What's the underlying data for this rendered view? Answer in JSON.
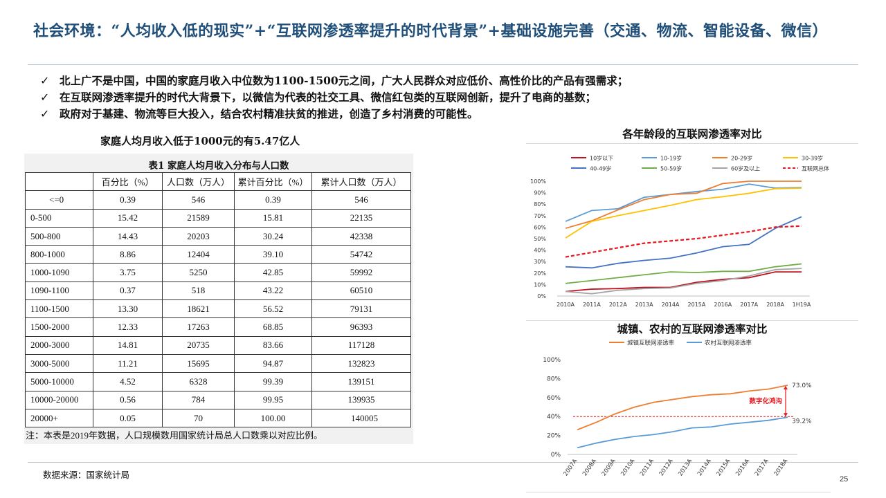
{
  "title": "社会环境：“人均收入低的现实”+“互联网渗透率提升的时代背景”+基础设施完善（交通、物流、智能设备、微信）",
  "bullets": [
    "北上广不是中国，中国的家庭月收入中位数为1100-1500元之间，广大人民群众对应低价、高性价比的产品有强需求；",
    "在互联网渗透率提升的时代大背景下，以微信为代表的社交工具、微信红包类的互联网创新，提升了电商的基数；",
    "政府对于基建、物流等巨大投入，结合农村精准扶贫的推进，创造了乡村消费的可能性。"
  ],
  "bullet_icon": "check-icon",
  "left_caption": "家庭人均月收入低于1000元的有5.47亿人",
  "table": {
    "caption": "表1 家庭人均月收入分布与人口数",
    "headers": [
      "",
      "百分比（%）",
      "人口数（万人）",
      "累计百分比（%）",
      "累计人口数（万人）"
    ],
    "rows": [
      [
        "<=0",
        "0.39",
        "546",
        "0.39",
        "546"
      ],
      [
        "0-500",
        "15.42",
        "21589",
        "15.81",
        "22135"
      ],
      [
        "500-800",
        "14.43",
        "20203",
        "30.24",
        "42338"
      ],
      [
        "800-1000",
        "8.86",
        "12404",
        "39.10",
        "54742"
      ],
      [
        "1000-1090",
        "3.75",
        "5250",
        "42.85",
        "59992"
      ],
      [
        "1090-1100",
        "0.37",
        "518",
        "43.22",
        "60510"
      ],
      [
        "1100-1500",
        "13.30",
        "18621",
        "56.52",
        "79131"
      ],
      [
        "1500-2000",
        "12.33",
        "17263",
        "68.85",
        "96393"
      ],
      [
        "2000-3000",
        "14.81",
        "20735",
        "83.66",
        "117128"
      ],
      [
        "3000-5000",
        "11.21",
        "15695",
        "94.87",
        "132823"
      ],
      [
        "5000-10000",
        "4.52",
        "6328",
        "99.39",
        "139151"
      ],
      [
        "10000-20000",
        "0.56",
        "784",
        "99.95",
        "139935"
      ],
      [
        "20000+",
        "0.05",
        "70",
        "100.00",
        ""
      ]
    ],
    "last_cell_override": "140005",
    "note": "注：本表是2019年数据，人口规模数用国家统计局总人口数乘以对应比例。"
  },
  "source": "数据来源：国家统计局",
  "page_number": "25",
  "chart_data": [
    {
      "type": "line",
      "title": "各年龄段的互联网渗透率对比",
      "categories": [
        "2010A",
        "2011A",
        "2012A",
        "2013A",
        "2014A",
        "2015A",
        "2016A",
        "2017A",
        "2018A",
        "1H19A"
      ],
      "ylim": [
        0,
        100
      ],
      "y_ticks": [
        "0%",
        "10%",
        "20%",
        "30%",
        "40%",
        "50%",
        "60%",
        "70%",
        "80%",
        "90%",
        "100%"
      ],
      "legend_position": "top",
      "grid": false,
      "series": [
        {
          "name": "10岁以下",
          "color": "#c0111f",
          "dash": false,
          "values": [
            4,
            6,
            6.5,
            7.5,
            7.5,
            12,
            14.5,
            16,
            21,
            21
          ]
        },
        {
          "name": "10-19岁",
          "color": "#5b9bd5",
          "dash": false,
          "values": [
            65,
            74.5,
            76,
            86,
            88.5,
            91,
            93,
            97.5,
            94,
            94.5
          ]
        },
        {
          "name": "20-29岁",
          "color": "#ed7d31",
          "dash": false,
          "values": [
            59,
            65.5,
            75,
            84,
            88.5,
            89.5,
            98,
            100,
            100,
            100
          ]
        },
        {
          "name": "30-39岁",
          "color": "#ffc000",
          "dash": false,
          "values": [
            50.5,
            65,
            70,
            74.5,
            79,
            84,
            86.5,
            89.5,
            93.5,
            94
          ]
        },
        {
          "name": "40-49岁",
          "color": "#4472c4",
          "dash": false,
          "values": [
            25.5,
            24.5,
            28.5,
            31,
            33,
            37.5,
            43,
            45,
            59,
            69
          ]
        },
        {
          "name": "50-59岁",
          "color": "#70ad47",
          "dash": false,
          "values": [
            11,
            13.5,
            16,
            18.5,
            21,
            20.5,
            21.5,
            21.5,
            25.5,
            28
          ]
        },
        {
          "name": "60岁及以上",
          "color": "#a5a5a5",
          "dash": false,
          "values": [
            4,
            2,
            5,
            6.5,
            7,
            11,
            13.5,
            17.5,
            23,
            24
          ]
        },
        {
          "name": "互联网总体",
          "color": "#e8151b",
          "dash": true,
          "values": [
            34,
            38,
            42,
            46,
            48,
            50,
            53,
            56,
            60,
            61
          ]
        }
      ]
    },
    {
      "type": "line",
      "title": "城镇、农村的互联网渗透率对比",
      "categories": [
        "2007A",
        "2008A",
        "2009A",
        "2010A",
        "2011A",
        "2012A",
        "2013A",
        "2014A",
        "2015A",
        "2016A",
        "2017A",
        "2018A"
      ],
      "ylim": [
        0,
        100
      ],
      "y_ticks": [
        "0%",
        "20%",
        "40%",
        "60%",
        "80%",
        "100%"
      ],
      "legend_position": "top",
      "grid": false,
      "series": [
        {
          "name": "城镇互联网渗透率",
          "color": "#ed7d31",
          "values": [
            26,
            34,
            43,
            50,
            55,
            58,
            61,
            63,
            64,
            67,
            69,
            73
          ]
        },
        {
          "name": "农村互联网渗透率",
          "color": "#5b9bd5",
          "values": [
            7,
            12,
            16,
            19,
            21,
            24,
            28,
            29,
            32,
            34,
            36,
            39.2
          ]
        }
      ],
      "reference_line": {
        "value": 40,
        "color": "#e8151b"
      },
      "annotations": {
        "end_top": "73.0%",
        "end_bottom": "39.2%",
        "gap_label": "数字化鸿沟"
      }
    }
  ]
}
